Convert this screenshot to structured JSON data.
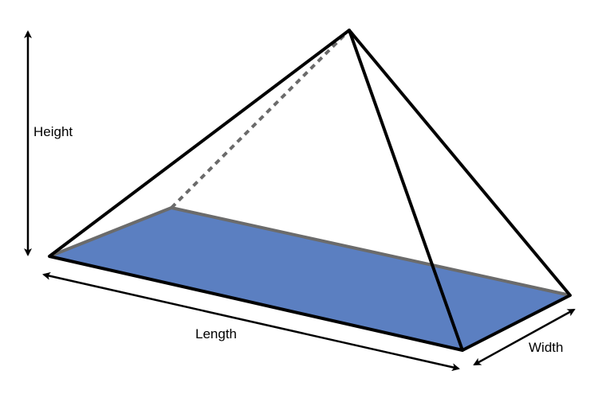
{
  "labels": {
    "height": "Height",
    "length": "Length",
    "width": "Width"
  },
  "colors": {
    "base_fill": "#5b7fc1",
    "base_back_edge": "#6b6b6b",
    "edge": "#000000",
    "hidden_edge": "#6b6b6b"
  }
}
